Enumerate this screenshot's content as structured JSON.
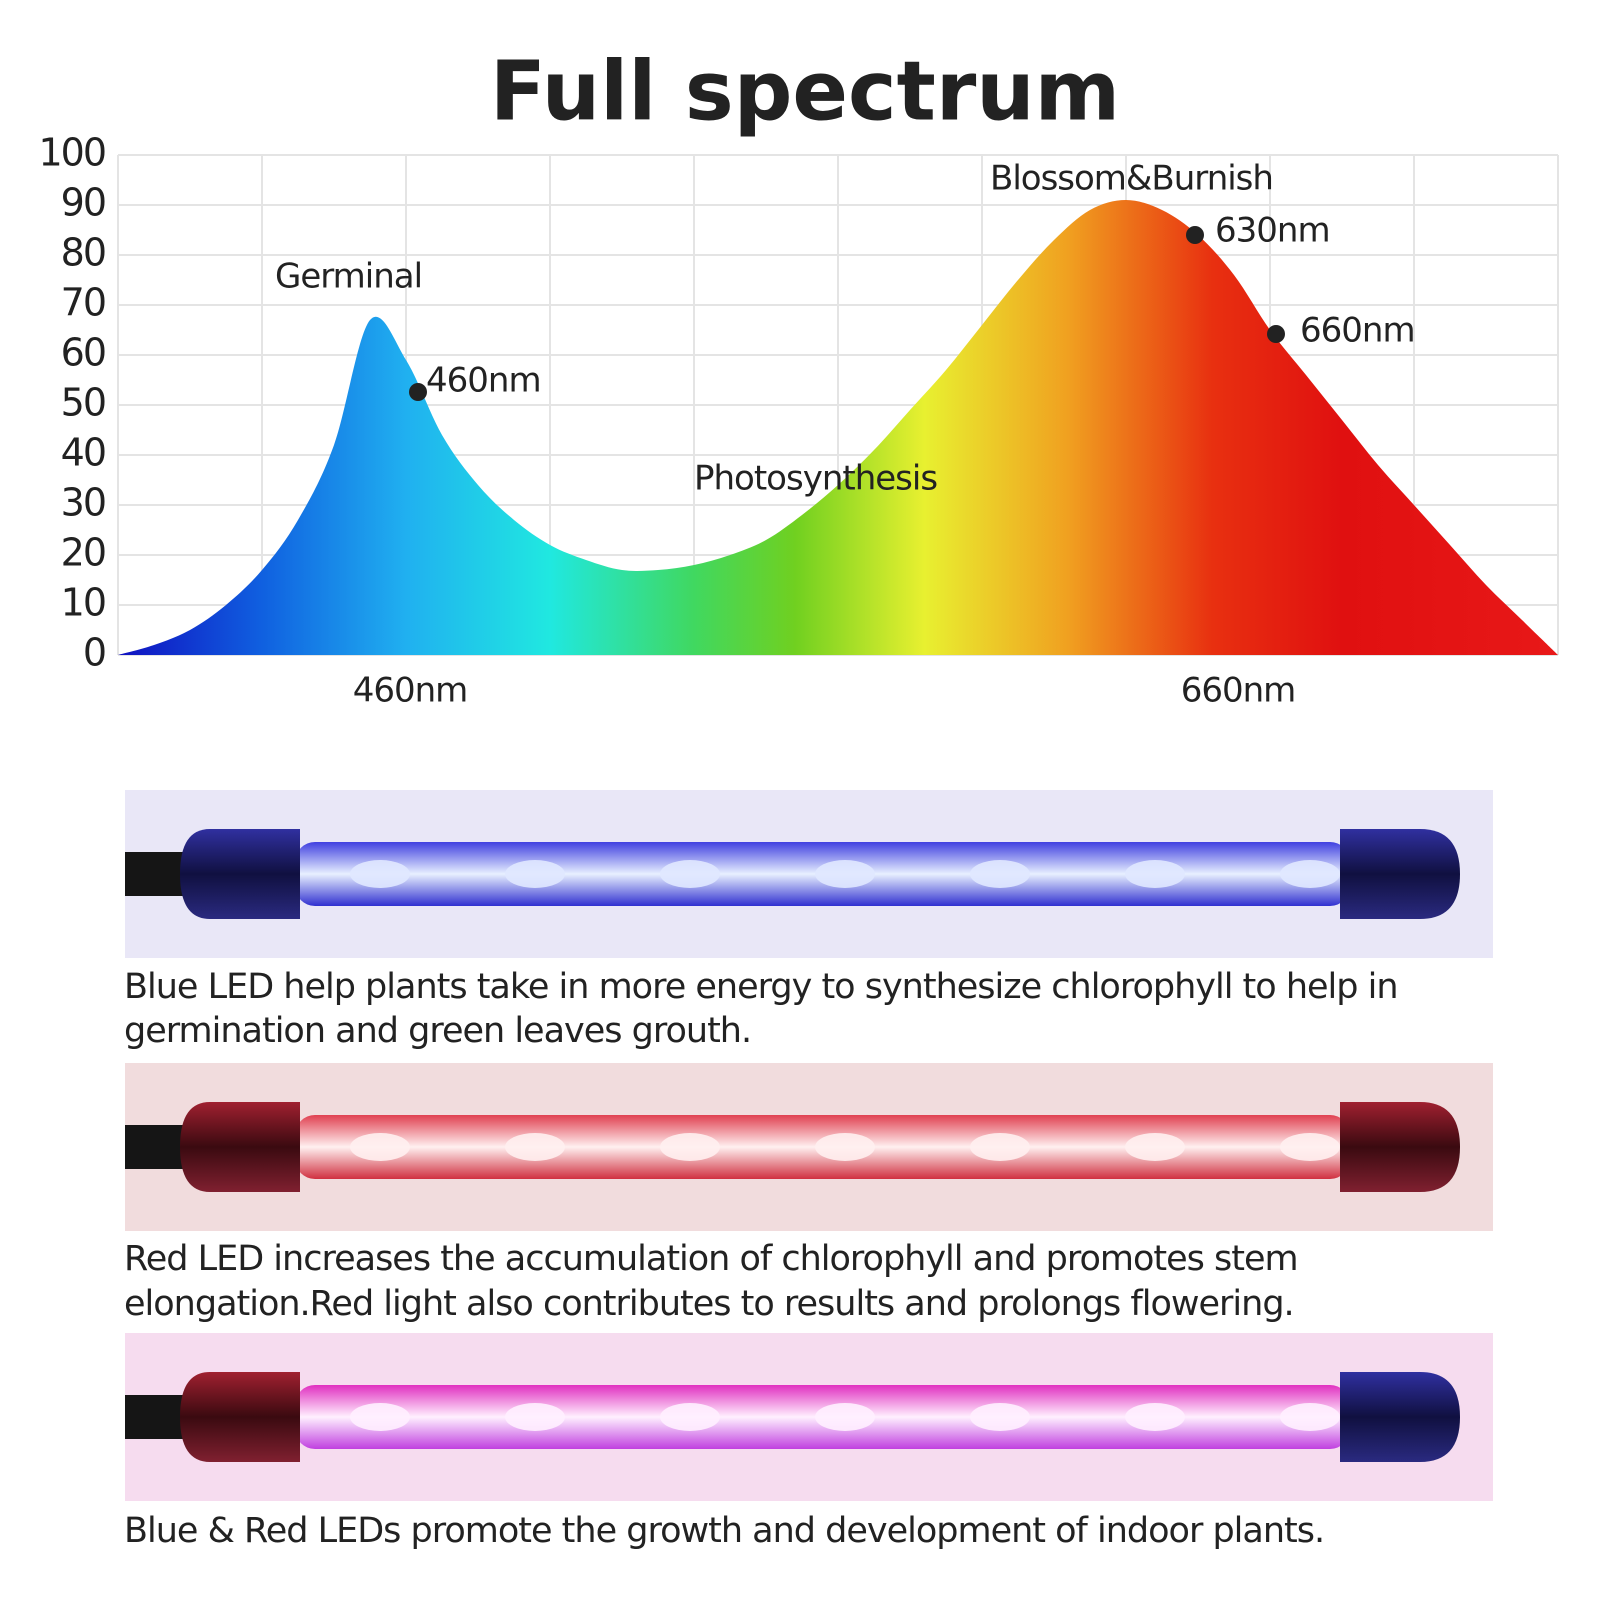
{
  "chart_data": {
    "type": "area",
    "title": "Full spectrum",
    "categories": [
      null,
      null,
      null,
      null,
      null,
      null,
      null,
      null,
      "460nm",
      null,
      null,
      null,
      null,
      null,
      null,
      null,
      null,
      null,
      null,
      null,
      null,
      null,
      null,
      null,
      null,
      null,
      null,
      null,
      null,
      null,
      null,
      "660nm",
      null,
      null,
      null,
      null,
      null,
      null,
      null,
      null,
      null
    ],
    "values": [
      0,
      2,
      5,
      10,
      17,
      27,
      42,
      67,
      59,
      44,
      34,
      27,
      22,
      19,
      17,
      17,
      18,
      20,
      23,
      28,
      34,
      41,
      49,
      57,
      66,
      75,
      83,
      89,
      91,
      89,
      84,
      76,
      65,
      56,
      47,
      38,
      30,
      22,
      14,
      7,
      0
    ],
    "ylim": [
      0,
      100
    ],
    "yticks": [
      0,
      10,
      20,
      30,
      40,
      50,
      60,
      70,
      80,
      90,
      100
    ],
    "grid": true,
    "annotations": [
      "Germinal",
      "460nm",
      "Photosynthesis",
      "Blossom&Burnish",
      "630nm",
      "660nm"
    ]
  },
  "panels": [
    {
      "caption": [
        "Blue LED help plants take in more energy to synthesize chlorophyll to help in",
        "germination and green leaves grouth."
      ]
    },
    {
      "caption": [
        "Red LED increases the accumulation of chlorophyll and promotes stem",
        "elongation.Red light also contributes to results and prolongs flowering."
      ]
    },
    {
      "caption": [
        "Blue & Red LEDs promote the growth and development of indoor plants."
      ]
    }
  ]
}
